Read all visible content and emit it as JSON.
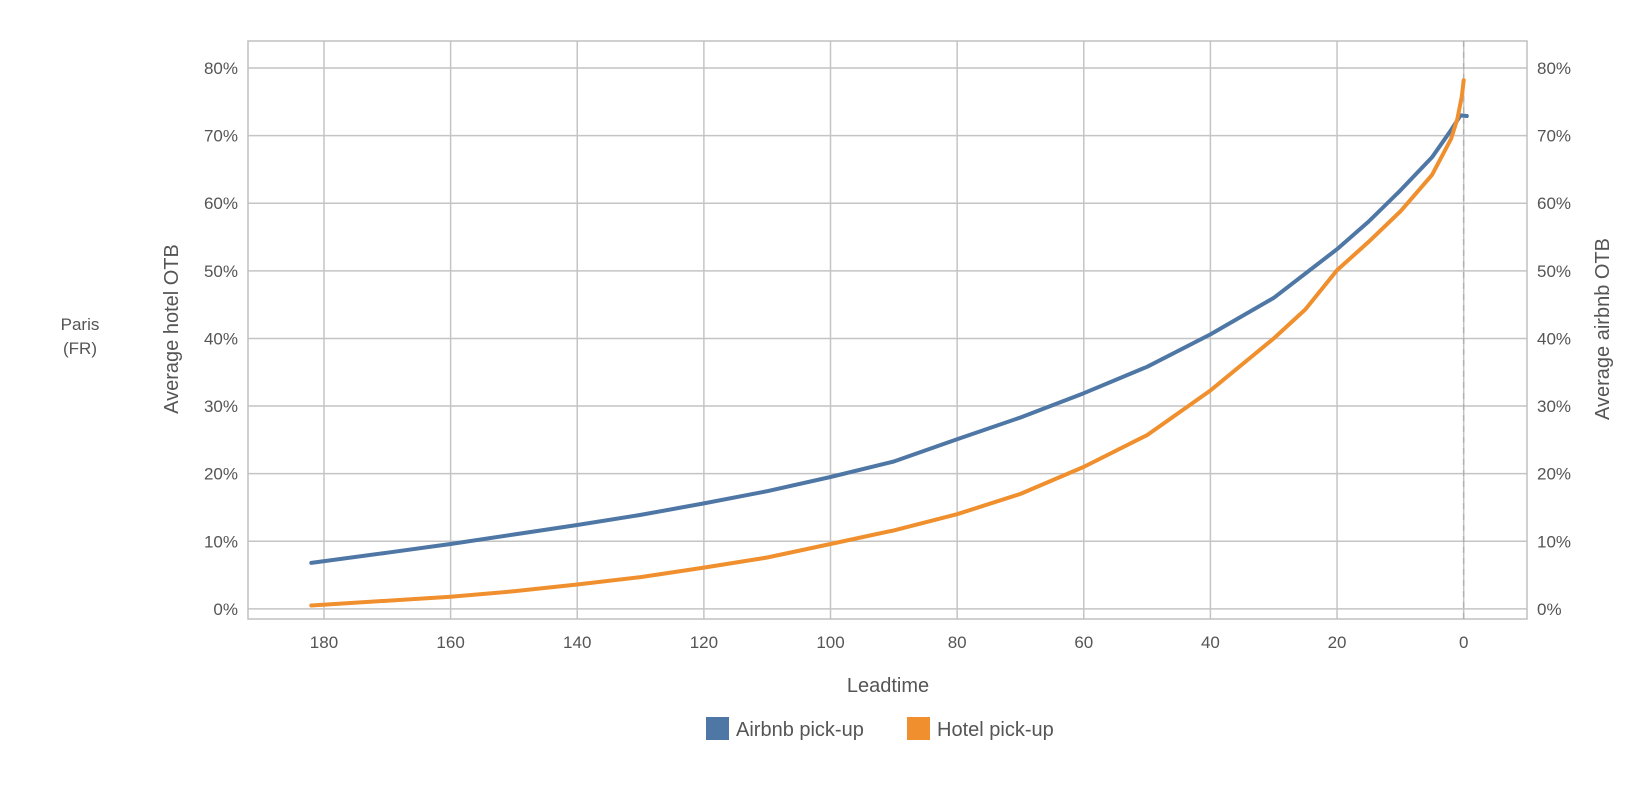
{
  "row_label": [
    "Paris",
    "(FR)"
  ],
  "chart_data": {
    "type": "line",
    "xlabel": "Leadtime",
    "ylabel_left": "Average hotel OTB",
    "ylabel_right": "Average airbnb OTB",
    "xlim": [
      192,
      -10
    ],
    "x_ticks": [
      180,
      160,
      140,
      120,
      100,
      80,
      60,
      40,
      20,
      0
    ],
    "ylim": [
      -1.5,
      84
    ],
    "y_ticks": [
      0,
      10,
      20,
      30,
      40,
      50,
      60,
      70,
      80
    ],
    "y_tick_suffix": "%",
    "grid": true,
    "vertical_reference_line_x": 0,
    "legend_position": "bottom-center",
    "series": [
      {
        "name": "Airbnb pick-up",
        "color": "#4e77a5",
        "points": [
          [
            182,
            6.8
          ],
          [
            170,
            8.3
          ],
          [
            160,
            9.6
          ],
          [
            150,
            11.0
          ],
          [
            140,
            12.4
          ],
          [
            130,
            13.9
          ],
          [
            120,
            15.6
          ],
          [
            110,
            17.4
          ],
          [
            100,
            19.5
          ],
          [
            90,
            21.8
          ],
          [
            80,
            25.1
          ],
          [
            70,
            28.3
          ],
          [
            60,
            31.9
          ],
          [
            50,
            35.8
          ],
          [
            40,
            40.6
          ],
          [
            30,
            46.0
          ],
          [
            20,
            53.2
          ],
          [
            15,
            57.3
          ],
          [
            10,
            61.9
          ],
          [
            5,
            66.8
          ],
          [
            2,
            70.8
          ],
          [
            0.5,
            73.0
          ],
          [
            -0.5,
            72.9
          ]
        ]
      },
      {
        "name": "Hotel pick-up",
        "color": "#f08f2d",
        "points": [
          [
            182,
            0.5
          ],
          [
            170,
            1.2
          ],
          [
            160,
            1.8
          ],
          [
            150,
            2.6
          ],
          [
            140,
            3.6
          ],
          [
            130,
            4.7
          ],
          [
            120,
            6.1
          ],
          [
            110,
            7.6
          ],
          [
            100,
            9.6
          ],
          [
            90,
            11.6
          ],
          [
            80,
            14.0
          ],
          [
            70,
            17.0
          ],
          [
            60,
            21.0
          ],
          [
            50,
            25.7
          ],
          [
            40,
            32.3
          ],
          [
            30,
            40.0
          ],
          [
            25,
            44.3
          ],
          [
            20,
            50.1
          ],
          [
            15,
            54.3
          ],
          [
            10,
            58.8
          ],
          [
            5,
            64.2
          ],
          [
            2,
            69.5
          ],
          [
            1,
            72.5
          ],
          [
            0.3,
            75.8
          ],
          [
            0,
            78.2
          ]
        ]
      }
    ]
  }
}
